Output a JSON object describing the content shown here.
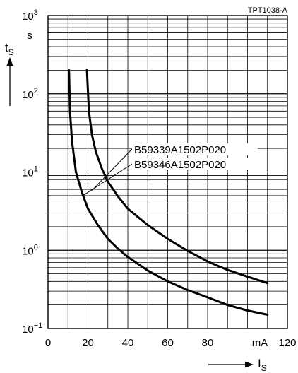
{
  "chart_data": {
    "type": "line",
    "figure_code": "TPT1038-A",
    "y_label": {
      "symbol": "t",
      "subscript": "S"
    },
    "y_unit": "s",
    "x_label": {
      "symbol": "I",
      "subscript": "S"
    },
    "x_unit": "mA",
    "x_scale": "linear",
    "y_scale": "log",
    "xlim": [
      0,
      120
    ],
    "ylim": [
      0.1,
      1000
    ],
    "x_ticks": [
      {
        "value": 0,
        "label": "0"
      },
      {
        "value": 20,
        "label": "20"
      },
      {
        "value": 40,
        "label": "40"
      },
      {
        "value": 60,
        "label": "60"
      },
      {
        "value": 80,
        "label": "80"
      },
      {
        "value": 120,
        "label": "120"
      }
    ],
    "y_ticks": [
      {
        "value": 0.1,
        "base": "10",
        "exp": "−1"
      },
      {
        "value": 1,
        "base": "10",
        "exp": "0"
      },
      {
        "value": 10,
        "base": "10",
        "exp": "1"
      },
      {
        "value": 100,
        "base": "10",
        "exp": "2"
      },
      {
        "value": 1000,
        "base": "10",
        "exp": "3"
      }
    ],
    "grid": true,
    "series": [
      {
        "name": "B59339A1502P020",
        "points": [
          [
            10.5,
            200
          ],
          [
            11,
            60
          ],
          [
            12,
            25
          ],
          [
            14,
            10
          ],
          [
            17,
            5.5
          ],
          [
            20,
            3.4
          ],
          [
            25,
            2.1
          ],
          [
            30,
            1.4
          ],
          [
            35,
            1.05
          ],
          [
            40,
            0.82
          ],
          [
            50,
            0.55
          ],
          [
            60,
            0.4
          ],
          [
            70,
            0.31
          ],
          [
            80,
            0.25
          ],
          [
            90,
            0.2
          ],
          [
            100,
            0.17
          ],
          [
            110,
            0.15
          ]
        ]
      },
      {
        "name": "B59346A1502P020",
        "points": [
          [
            19.5,
            200
          ],
          [
            20.5,
            60
          ],
          [
            22,
            30
          ],
          [
            24,
            18
          ],
          [
            27,
            11
          ],
          [
            30,
            7.5
          ],
          [
            35,
            4.9
          ],
          [
            40,
            3.4
          ],
          [
            50,
            2.1
          ],
          [
            60,
            1.4
          ],
          [
            70,
            0.98
          ],
          [
            80,
            0.72
          ],
          [
            90,
            0.56
          ],
          [
            100,
            0.46
          ],
          [
            110,
            0.38
          ]
        ]
      }
    ]
  }
}
